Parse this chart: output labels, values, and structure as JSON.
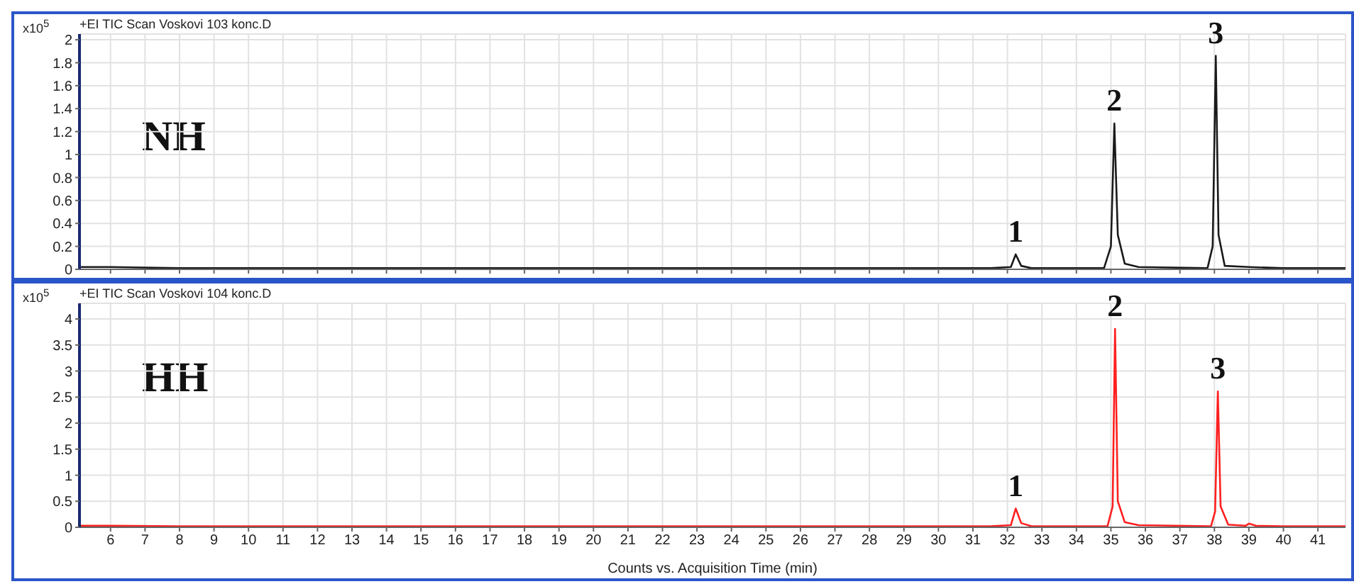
{
  "chart_data": [
    {
      "type": "line",
      "subtitle": "+EI TIC Scan Voskovi 103 konc.D",
      "title": "NH",
      "ylabel": "x10$^{5}$",
      "xlim": [
        5.1,
        41.8
      ],
      "xticks": [
        6,
        7,
        8,
        9,
        10,
        11,
        12,
        13,
        14,
        15,
        16,
        17,
        18,
        19,
        20,
        21,
        22,
        23,
        24,
        25,
        26,
        27,
        28,
        29,
        30,
        31,
        32,
        33,
        34,
        35,
        36,
        37,
        38,
        39,
        40,
        41
      ],
      "ylim": [
        0,
        2.05
      ],
      "yticks": [
        0,
        0.2,
        0.4,
        0.6,
        0.8,
        1,
        1.2,
        1.4,
        1.6,
        1.8,
        2
      ],
      "tick_labels": "y",
      "grid": true,
      "legend": false,
      "marker": "none",
      "series": [
        {
          "color": "#1a1a1a",
          "x": [
            5.1,
            6,
            8,
            10,
            12,
            14,
            16,
            18,
            20,
            22,
            24,
            26,
            28,
            30,
            31.5,
            32.1,
            32.24,
            32.4,
            32.7,
            34.8,
            35.0,
            35.1,
            35.2,
            35.4,
            35.8,
            37.8,
            37.95,
            38.04,
            38.12,
            38.3,
            39,
            40,
            41.8
          ],
          "values": [
            0.02,
            0.02,
            0.01,
            0.01,
            0.01,
            0.01,
            0.01,
            0.01,
            0.01,
            0.01,
            0.01,
            0.01,
            0.01,
            0.01,
            0.01,
            0.02,
            0.13,
            0.03,
            0.01,
            0.01,
            0.2,
            1.27,
            0.3,
            0.05,
            0.02,
            0.01,
            0.2,
            1.86,
            0.3,
            0.03,
            0.02,
            0.01,
            0.01
          ]
        }
      ],
      "annotations": [
        {
          "text": "1",
          "x": 32.24,
          "y": 0.13
        },
        {
          "text": "2",
          "x": 35.1,
          "y": 1.27
        },
        {
          "text": "3",
          "x": 38.04,
          "y": 1.86
        }
      ]
    },
    {
      "type": "line",
      "subtitle": "+EI TIC Scan Voskovi 104 konc.D",
      "title": "HH",
      "ylabel": "x10$^{5}$",
      "xlabel": "Counts vs. Acquisition Time (min)",
      "xlim": [
        5.1,
        41.8
      ],
      "xticks": [
        6,
        7,
        8,
        9,
        10,
        11,
        12,
        13,
        14,
        15,
        16,
        17,
        18,
        19,
        20,
        21,
        22,
        23,
        24,
        25,
        26,
        27,
        28,
        29,
        30,
        31,
        32,
        33,
        34,
        35,
        36,
        37,
        38,
        39,
        40,
        41
      ],
      "ylim": [
        0,
        4.3
      ],
      "yticks": [
        0,
        0.5,
        1,
        1.5,
        2,
        2.5,
        3,
        3.5,
        4
      ],
      "grid": true,
      "legend": false,
      "marker": "none",
      "series": [
        {
          "color": "#ff2020",
          "x": [
            5.1,
            6,
            8,
            10,
            12,
            14,
            16,
            18,
            20,
            22,
            24,
            26,
            28,
            30,
            31.5,
            32.1,
            32.24,
            32.4,
            32.7,
            34.9,
            35.05,
            35.12,
            35.2,
            35.4,
            35.8,
            37.9,
            38.02,
            38.1,
            38.18,
            38.4,
            38.9,
            39.0,
            39.2,
            40,
            41.8
          ],
          "values": [
            0.03,
            0.03,
            0.02,
            0.02,
            0.02,
            0.02,
            0.02,
            0.02,
            0.02,
            0.02,
            0.02,
            0.02,
            0.02,
            0.02,
            0.02,
            0.04,
            0.36,
            0.08,
            0.02,
            0.02,
            0.4,
            3.81,
            0.5,
            0.1,
            0.04,
            0.02,
            0.3,
            2.61,
            0.4,
            0.05,
            0.03,
            0.07,
            0.03,
            0.02,
            0.02
          ]
        }
      ],
      "annotations": [
        {
          "text": "1",
          "x": 32.24,
          "y": 0.36
        },
        {
          "text": "2",
          "x": 35.12,
          "y": 3.81
        },
        {
          "text": "3",
          "x": 38.1,
          "y": 2.61
        }
      ]
    }
  ]
}
